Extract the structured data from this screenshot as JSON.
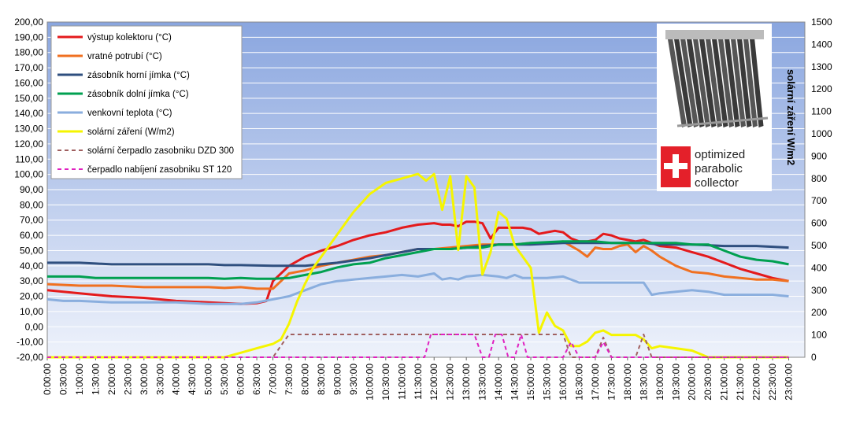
{
  "chart_data": {
    "type": "line",
    "ylabel_right": "solární záření W/m2",
    "ylim_left": [
      -20,
      200
    ],
    "ylim_right": [
      0,
      1500
    ],
    "y_left_ticks": [
      "-20,00",
      "-10,00",
      "0,00",
      "10,00",
      "20,00",
      "30,00",
      "40,00",
      "50,00",
      "60,00",
      "70,00",
      "80,00",
      "90,00",
      "100,00",
      "110,00",
      "120,00",
      "130,00",
      "140,00",
      "150,00",
      "160,00",
      "170,00",
      "180,00",
      "190,00",
      "200,00"
    ],
    "y_right_ticks": [
      "0",
      "100",
      "200",
      "300",
      "400",
      "500",
      "600",
      "700",
      "800",
      "900",
      "1000",
      "1100",
      "1200",
      "1300",
      "1400",
      "1500"
    ],
    "x_ticks": [
      "0:00:00",
      "0:30:00",
      "1:00:00",
      "1:30:00",
      "2:00:00",
      "2:30:00",
      "3:00:00",
      "3:30:00",
      "4:00:00",
      "4:30:00",
      "5:00:00",
      "5:30:00",
      "6:00:00",
      "6:30:00",
      "7:00:00",
      "7:30:00",
      "8:00:00",
      "8:30:00",
      "9:00:00",
      "9:30:00",
      "10:00:00",
      "10:30:00",
      "11:00:00",
      "11:30:00",
      "12:00:00",
      "12:30:00",
      "13:00:00",
      "13:30:00",
      "14:00:00",
      "14:30:00",
      "15:00:00",
      "15:30:00",
      "16:00:00",
      "16:30:00",
      "17:00:00",
      "17:30:00",
      "18:00:00",
      "18:30:00",
      "19:00:00",
      "19:30:00",
      "20:00:00",
      "20:30:00",
      "21:00:00",
      "21:30:00",
      "22:00:00",
      "22:30:00",
      "23:00:00"
    ],
    "grid": true,
    "legend_position": "top-left",
    "plot_background": "gradient-blue",
    "series": [
      {
        "name": "výstup kolektoru (°C)",
        "color": "#e41a1c",
        "axis": "left",
        "style": "solid",
        "x": [
          0,
          1,
          2,
          3,
          4,
          5,
          6,
          6.5,
          6.8,
          7,
          7.5,
          8,
          8.5,
          9,
          9.5,
          10,
          10.5,
          11,
          11.5,
          12,
          12.25,
          12.5,
          12.75,
          13,
          13.25,
          13.5,
          13.75,
          14,
          14.25,
          14.5,
          14.75,
          15,
          15.25,
          15.5,
          15.75,
          16,
          16.25,
          16.5,
          16.75,
          17,
          17.25,
          17.5,
          17.75,
          18,
          18.25,
          18.5,
          18.75,
          19,
          19.5,
          20,
          20.5,
          21,
          21.5,
          22,
          22.5,
          23
        ],
        "y": [
          24,
          22,
          20,
          19,
          17,
          16,
          15,
          15.5,
          17,
          30,
          40,
          46,
          50,
          53,
          57,
          60,
          62,
          65,
          67,
          68,
          67,
          67,
          66,
          69,
          69,
          68,
          58,
          65,
          65,
          65,
          65,
          64,
          61,
          62,
          63,
          62,
          58,
          56,
          56,
          57,
          61,
          60,
          58,
          57,
          56,
          57,
          55,
          53,
          52,
          49,
          46,
          42,
          38,
          35,
          32,
          30
        ]
      },
      {
        "name": "vratné potrubí (°C)",
        "color": "#f07020",
        "axis": "left",
        "style": "solid",
        "x": [
          0,
          1,
          2,
          3,
          4,
          5,
          5.5,
          6,
          6.5,
          7,
          7.25,
          7.5,
          8,
          8.5,
          9,
          9.5,
          10,
          10.5,
          11,
          11.5,
          12,
          12.5,
          13,
          13.5,
          14,
          14.5,
          15,
          15.5,
          16,
          16.5,
          16.75,
          17,
          17.25,
          17.5,
          17.75,
          18,
          18.25,
          18.5,
          18.75,
          19,
          19.5,
          20,
          20.5,
          21,
          21.5,
          22,
          22.5,
          23
        ],
        "y": [
          28,
          27,
          27,
          26,
          26,
          26,
          25.5,
          26,
          25,
          25,
          30,
          35,
          37,
          40,
          42,
          44,
          46,
          47,
          49,
          51,
          51,
          52,
          53,
          54,
          54,
          54,
          55,
          55,
          56,
          50,
          46,
          52,
          51,
          51,
          53,
          54,
          49,
          53,
          50,
          46,
          40,
          36,
          35,
          33,
          32,
          31,
          31,
          30
        ]
      },
      {
        "name": "zásobník horní jímka (°C)",
        "color": "#2f4f7f",
        "axis": "left",
        "style": "solid",
        "x": [
          0,
          1,
          1.5,
          2,
          3,
          4,
          5,
          5.5,
          6,
          7,
          8,
          9,
          10,
          11,
          11.5,
          12,
          12.5,
          13,
          14,
          14.5,
          15,
          16,
          16.5,
          17,
          18,
          18.5,
          19,
          20,
          21,
          22,
          23
        ],
        "y": [
          42,
          42,
          41.5,
          41,
          41,
          41,
          41,
          40.5,
          40.5,
          40,
          40,
          42,
          45,
          49,
          51,
          51,
          51,
          52,
          54,
          54,
          54,
          55,
          55,
          55,
          55,
          55,
          54,
          54,
          53,
          53,
          52
        ]
      },
      {
        "name": "zásobník dolní jímka  (°C)",
        "color": "#00a050",
        "axis": "left",
        "style": "solid",
        "x": [
          0,
          1,
          1.5,
          2,
          3,
          4,
          5,
          5.5,
          6,
          6.5,
          7,
          7.5,
          8,
          8.5,
          9,
          9.5,
          10,
          10.5,
          11,
          11.5,
          12,
          12.5,
          13,
          13.5,
          14,
          14.5,
          15,
          16,
          16.5,
          17,
          17.5,
          18,
          18.5,
          19,
          19.5,
          20,
          20.5,
          21,
          21.5,
          22,
          22.5,
          23
        ],
        "y": [
          33,
          33,
          32,
          32,
          32,
          32,
          32,
          31.5,
          32,
          31.5,
          31.5,
          32,
          34,
          36,
          39,
          41,
          42,
          45,
          47,
          49,
          51,
          51,
          52,
          52,
          54,
          54,
          55,
          56,
          56,
          56,
          55,
          55,
          55,
          55,
          55,
          54,
          54,
          50,
          46,
          44,
          43,
          41
        ]
      },
      {
        "name": "venkovní teplota (°C)",
        "color": "#8aaede",
        "axis": "left",
        "style": "solid",
        "x": [
          0,
          0.5,
          1,
          2,
          3,
          4,
          5,
          5.5,
          6,
          6.5,
          7,
          7.5,
          8,
          8.5,
          9,
          9.5,
          10,
          10.5,
          11,
          11.5,
          12,
          12.25,
          12.5,
          12.75,
          13,
          13.5,
          14,
          14.25,
          14.5,
          14.75,
          15,
          15.5,
          16,
          16.5,
          17,
          17.5,
          18,
          18.25,
          18.5,
          18.75,
          19,
          19.5,
          20,
          20.5,
          21,
          21.5,
          22,
          22.5,
          23
        ],
        "y": [
          18,
          17,
          17,
          16,
          16,
          16,
          15,
          15,
          15,
          16,
          18,
          20,
          24,
          28,
          30,
          31,
          32,
          33,
          34,
          33,
          35,
          31,
          32,
          31,
          33,
          34,
          33,
          32,
          34,
          32,
          32,
          32,
          33,
          29,
          29,
          29,
          29,
          29,
          29,
          21,
          22,
          23,
          24,
          23,
          21,
          21,
          21,
          21,
          20
        ]
      },
      {
        "name": "solární záření (W/m2)",
        "color": "#f5f500",
        "axis": "right",
        "style": "solid",
        "x": [
          0,
          5.5,
          6,
          6.5,
          7,
          7.25,
          7.5,
          7.75,
          8,
          8.25,
          8.5,
          9,
          9.5,
          10,
          10.5,
          11,
          11.5,
          11.75,
          12,
          12.25,
          12.5,
          12.75,
          13,
          13.25,
          13.5,
          13.75,
          14,
          14.25,
          14.5,
          14.75,
          15,
          15.25,
          15.5,
          15.75,
          16,
          16.25,
          16.5,
          16.75,
          17,
          17.25,
          17.5,
          17.75,
          18,
          18.25,
          18.5,
          18.75,
          19,
          19.5,
          20,
          20.5,
          21,
          23
        ],
        "y": [
          0,
          0,
          20,
          40,
          60,
          80,
          150,
          250,
          330,
          400,
          450,
          550,
          650,
          730,
          780,
          800,
          820,
          790,
          820,
          660,
          810,
          480,
          810,
          760,
          370,
          470,
          650,
          620,
          500,
          450,
          400,
          110,
          200,
          140,
          120,
          50,
          50,
          70,
          110,
          120,
          100,
          100,
          100,
          100,
          80,
          40,
          50,
          40,
          30,
          0,
          0,
          0
        ]
      },
      {
        "name": "solární čerpadlo zasobniku  DZD 300",
        "color": "#a06060",
        "axis": "left",
        "style": "dashed",
        "x": [
          0,
          7,
          7.33,
          7.5,
          16,
          16.25,
          16.5,
          17,
          17.25,
          17.5,
          17.75,
          18,
          18.25,
          18.5,
          18.75,
          19,
          23
        ],
        "y": [
          -20,
          -20,
          -10,
          -5,
          -5,
          -20,
          -20,
          -20,
          -7,
          -20,
          -20,
          -20,
          -20,
          -5,
          -20,
          -20,
          -20
        ]
      },
      {
        "name": "čerpadlo nabíjení  zasobniku ST 120",
        "color": "#e020c0",
        "axis": "left",
        "style": "dashed",
        "x": [
          0,
          11.7,
          11.9,
          12,
          13,
          13.25,
          13.5,
          13.7,
          13.9,
          14.1,
          14.3,
          14.5,
          14.7,
          14.9,
          15.1,
          15.3,
          16,
          16.25,
          16.5,
          17,
          17.25,
          17.5,
          18,
          23
        ],
        "y": [
          -20,
          -20,
          -5,
          -5,
          -5,
          -5,
          -20,
          -20,
          -5,
          -5,
          -20,
          -20,
          -5,
          -20,
          -20,
          -20,
          -20,
          -10,
          -20,
          -20,
          -10,
          -20,
          -20,
          -20
        ]
      }
    ]
  },
  "promo": {
    "brand_line1": "optimized",
    "brand_line2": "parabolic",
    "brand_line3": "collector"
  }
}
